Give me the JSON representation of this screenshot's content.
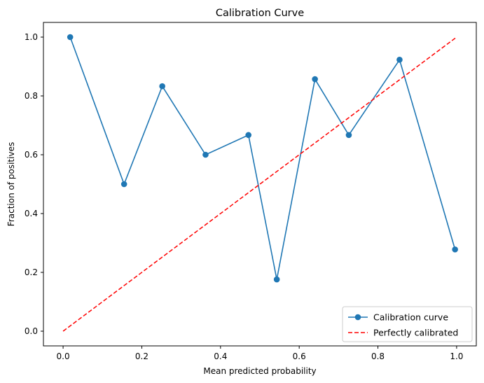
{
  "chart_data": {
    "type": "line",
    "title": "Calibration Curve",
    "xlabel": "Mean predicted probability",
    "ylabel": "Fraction of positives",
    "xlim": [
      -0.05,
      1.05
    ],
    "ylim": [
      -0.05,
      1.05
    ],
    "x_ticks": [
      0.0,
      0.2,
      0.4,
      0.6,
      0.8,
      1.0
    ],
    "y_ticks": [
      0.0,
      0.2,
      0.4,
      0.6,
      0.8,
      1.0
    ],
    "x_tick_labels": [
      "0.0",
      "0.2",
      "0.4",
      "0.6",
      "0.8",
      "1.0"
    ],
    "y_tick_labels": [
      "0.0",
      "0.2",
      "0.4",
      "0.6",
      "0.8",
      "1.0"
    ],
    "grid": false,
    "legend_position": "lower-right",
    "series": [
      {
        "name": "Calibration curve",
        "style": "solid line with circle markers",
        "color": "#1f77b4",
        "x": [
          0.018,
          0.155,
          0.252,
          0.362,
          0.471,
          0.543,
          0.64,
          0.726,
          0.855,
          0.996
        ],
        "y": [
          1.0,
          0.5,
          0.833,
          0.6,
          0.667,
          0.176,
          0.857,
          0.667,
          0.923,
          0.278
        ]
      },
      {
        "name": "Perfectly calibrated",
        "style": "dashed line",
        "color": "#ff0000",
        "x": [
          0.0,
          1.0
        ],
        "y": [
          0.0,
          1.0
        ]
      }
    ]
  }
}
